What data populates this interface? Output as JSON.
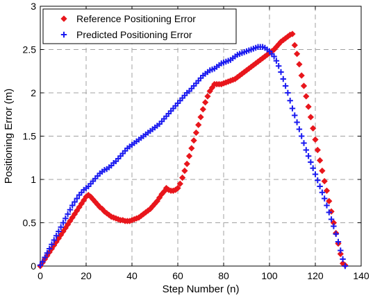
{
  "chart_data": {
    "type": "scatter",
    "title": "",
    "xlabel": "Step Number (n)",
    "ylabel": "Positioning Error (m)",
    "xlim": [
      0,
      140
    ],
    "ylim": [
      0,
      3
    ],
    "xticks": [
      0,
      20,
      40,
      60,
      80,
      100,
      120,
      140
    ],
    "yticks": [
      0,
      0.5,
      1,
      1.5,
      2,
      2.5,
      3
    ],
    "xtick_labels": [
      "0",
      "20",
      "40",
      "60",
      "80",
      "100",
      "120",
      "140"
    ],
    "ytick_labels": [
      "0",
      "0.5",
      "1",
      "1.5",
      "2",
      "2.5",
      "3"
    ],
    "grid": true,
    "legend_position": "top-left",
    "series": [
      {
        "name": "Reference Positioning Error",
        "color": "#e8161c",
        "marker": "diamond",
        "x": [
          0,
          1,
          2,
          3,
          4,
          5,
          6,
          7,
          8,
          9,
          10,
          11,
          12,
          13,
          14,
          15,
          16,
          17,
          18,
          19,
          20,
          21,
          22,
          23,
          24,
          25,
          26,
          27,
          28,
          29,
          30,
          31,
          32,
          33,
          34,
          35,
          36,
          37,
          38,
          39,
          40,
          41,
          42,
          43,
          44,
          45,
          46,
          47,
          48,
          49,
          50,
          51,
          52,
          53,
          54,
          55,
          56,
          57,
          58,
          59,
          60,
          61,
          62,
          63,
          64,
          65,
          66,
          67,
          68,
          69,
          70,
          71,
          72,
          73,
          74,
          75,
          76,
          77,
          78,
          79,
          80,
          81,
          82,
          83,
          84,
          85,
          86,
          87,
          88,
          89,
          90,
          91,
          92,
          93,
          94,
          95,
          96,
          97,
          98,
          99,
          100,
          101,
          102,
          103,
          104,
          105,
          106,
          107,
          108,
          109,
          110,
          111,
          112,
          113,
          114,
          115,
          116,
          117,
          118,
          119,
          120,
          121,
          122,
          123,
          124,
          125,
          126,
          127,
          128,
          129,
          130,
          131,
          132,
          133
        ],
        "y": [
          0,
          0.04,
          0.08,
          0.12,
          0.16,
          0.2,
          0.24,
          0.28,
          0.32,
          0.36,
          0.4,
          0.44,
          0.48,
          0.52,
          0.56,
          0.6,
          0.64,
          0.68,
          0.72,
          0.76,
          0.8,
          0.82,
          0.8,
          0.77,
          0.74,
          0.71,
          0.68,
          0.66,
          0.63,
          0.61,
          0.59,
          0.57,
          0.56,
          0.55,
          0.54,
          0.53,
          0.53,
          0.52,
          0.52,
          0.52,
          0.53,
          0.54,
          0.55,
          0.56,
          0.58,
          0.6,
          0.62,
          0.64,
          0.66,
          0.69,
          0.72,
          0.75,
          0.79,
          0.83,
          0.86,
          0.9,
          0.88,
          0.87,
          0.87,
          0.88,
          0.9,
          0.95,
          1.02,
          1.1,
          1.18,
          1.27,
          1.36,
          1.45,
          1.54,
          1.63,
          1.72,
          1.81,
          1.89,
          1.96,
          2.02,
          2.06,
          2.1,
          2.1,
          2.1,
          2.1,
          2.11,
          2.12,
          2.13,
          2.14,
          2.15,
          2.16,
          2.18,
          2.2,
          2.22,
          2.24,
          2.26,
          2.28,
          2.3,
          2.32,
          2.34,
          2.36,
          2.38,
          2.4,
          2.42,
          2.44,
          2.46,
          2.48,
          2.5,
          2.53,
          2.56,
          2.59,
          2.61,
          2.63,
          2.65,
          2.67,
          2.68,
          2.55,
          2.45,
          2.33,
          2.2,
          2.08,
          1.96,
          1.84,
          1.72,
          1.59,
          1.46,
          1.34,
          1.22,
          1.1,
          0.98,
          0.87,
          0.75,
          0.63,
          0.5,
          0.38,
          0.26,
          0.14,
          0.03,
          0.01
        ]
      },
      {
        "name": "Predicted Positioning Error",
        "color": "#1a1af0",
        "marker": "plus",
        "x": [
          0,
          1,
          2,
          3,
          4,
          5,
          6,
          7,
          8,
          9,
          10,
          11,
          12,
          13,
          14,
          15,
          16,
          17,
          18,
          19,
          20,
          21,
          22,
          23,
          24,
          25,
          26,
          27,
          28,
          29,
          30,
          31,
          32,
          33,
          34,
          35,
          36,
          37,
          38,
          39,
          40,
          41,
          42,
          43,
          44,
          45,
          46,
          47,
          48,
          49,
          50,
          51,
          52,
          53,
          54,
          55,
          56,
          57,
          58,
          59,
          60,
          61,
          62,
          63,
          64,
          65,
          66,
          67,
          68,
          69,
          70,
          71,
          72,
          73,
          74,
          75,
          76,
          77,
          78,
          79,
          80,
          81,
          82,
          83,
          84,
          85,
          86,
          87,
          88,
          89,
          90,
          91,
          92,
          93,
          94,
          95,
          96,
          97,
          98,
          99,
          100,
          101,
          102,
          103,
          104,
          105,
          106,
          107,
          108,
          109,
          110,
          111,
          112,
          113,
          114,
          115,
          116,
          117,
          118,
          119,
          120,
          121,
          122,
          123,
          124,
          125,
          126,
          127,
          128,
          129,
          130,
          131,
          132,
          133
        ],
        "y": [
          0.01,
          0.05,
          0.1,
          0.15,
          0.2,
          0.25,
          0.3,
          0.35,
          0.4,
          0.45,
          0.5,
          0.55,
          0.6,
          0.65,
          0.7,
          0.74,
          0.78,
          0.82,
          0.85,
          0.88,
          0.9,
          0.92,
          0.95,
          0.98,
          1.01,
          1.04,
          1.07,
          1.09,
          1.11,
          1.12,
          1.14,
          1.16,
          1.19,
          1.21,
          1.24,
          1.27,
          1.3,
          1.33,
          1.36,
          1.38,
          1.4,
          1.42,
          1.44,
          1.46,
          1.48,
          1.5,
          1.52,
          1.54,
          1.56,
          1.58,
          1.6,
          1.62,
          1.64,
          1.67,
          1.7,
          1.73,
          1.76,
          1.79,
          1.82,
          1.85,
          1.88,
          1.91,
          1.94,
          1.97,
          2,
          2.02,
          2.05,
          2.08,
          2.11,
          2.14,
          2.17,
          2.2,
          2.22,
          2.24,
          2.26,
          2.27,
          2.28,
          2.3,
          2.32,
          2.34,
          2.35,
          2.36,
          2.37,
          2.38,
          2.4,
          2.42,
          2.44,
          2.45,
          2.46,
          2.47,
          2.48,
          2.49,
          2.5,
          2.51,
          2.52,
          2.53,
          2.53,
          2.53,
          2.52,
          2.5,
          2.48,
          2.45,
          2.42,
          2.37,
          2.31,
          2.24,
          2.16,
          2.08,
          2,
          1.91,
          1.82,
          1.74,
          1.66,
          1.58,
          1.5,
          1.42,
          1.34,
          1.27,
          1.2,
          1.13,
          1.06,
          0.99,
          0.92,
          0.85,
          0.78,
          0.7,
          0.62,
          0.54,
          0.46,
          0.37,
          0.28,
          0.18,
          0.08,
          0
        ]
      }
    ]
  }
}
